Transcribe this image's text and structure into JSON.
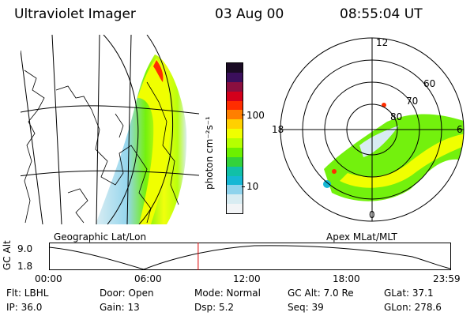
{
  "header": {
    "title": "Ultraviolet Imager",
    "date": "03 Aug 00",
    "time": "08:55:04 UT"
  },
  "colorbar": {
    "unit_label": "photon cm⁻²s⁻¹",
    "ticks": [
      "100",
      "10"
    ],
    "colors": [
      "#1a0b24",
      "#3b0f5c",
      "#8b0f3f",
      "#d4001b",
      "#ff2d00",
      "#ff7f00",
      "#ffd000",
      "#f0ff00",
      "#b5ff00",
      "#6cf000",
      "#33d23a",
      "#11c0a7",
      "#16b7d4",
      "#8fd3ec",
      "#d8ecf2",
      "#f2f4f6"
    ]
  },
  "left_panel": {
    "label": "Geographic Lat/Lon"
  },
  "right_panel": {
    "label": "Apex MLat/MLT",
    "mlt_labels": {
      "top": "12",
      "left": "18",
      "right": "6",
      "bottom": "0"
    },
    "lat_labels": [
      "60",
      "70",
      "80"
    ]
  },
  "altitude_plot": {
    "ylabel": "GC Alt",
    "yticks": [
      "9.0",
      "1.8"
    ],
    "xticks": [
      "00:00",
      "06:00",
      "12:00",
      "18:00",
      "23:59"
    ],
    "marker_time": "08:55"
  },
  "info": {
    "flt": "Flt: LBHL",
    "ip": "IP: 36.0",
    "door": "Door: Open",
    "gain": "Gain: 13",
    "mode": "Mode: Normal",
    "dsp": "Dsp:      5.2",
    "gc_alt": "GC Alt: 7.0 Re",
    "seq": "Seq: 39",
    "glat": "GLat:  37.1",
    "glon": "GLon: 278.6"
  }
}
